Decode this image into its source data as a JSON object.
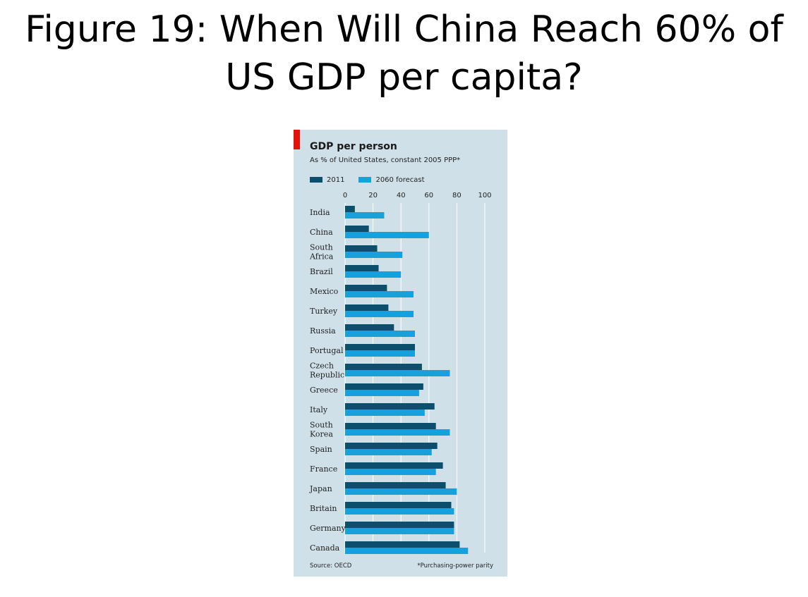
{
  "slide": {
    "title": "Figure 19: When Will China Reach 60% of US GDP per capita?"
  },
  "colors": {
    "panel_bg": "#cfe0e8",
    "accent_red": "#e3120b",
    "series_2011": "#0b4f6c",
    "series_2060": "#16a1dc",
    "gridline": "#ffffff"
  },
  "chart_data": {
    "type": "bar",
    "orientation": "horizontal",
    "title": "GDP per person",
    "subtitle": "As % of United States, constant 2005 PPP*",
    "xlim": [
      0,
      100
    ],
    "xticks": [
      0,
      20,
      40,
      60,
      80,
      100
    ],
    "grid": true,
    "legend_position": "top-left",
    "categories": [
      "India",
      "China",
      "South Africa",
      "Brazil",
      "Mexico",
      "Turkey",
      "Russia",
      "Portugal",
      "Czech Republic",
      "Greece",
      "Italy",
      "South Korea",
      "Spain",
      "France",
      "Japan",
      "Britain",
      "Germany",
      "Canada"
    ],
    "category_lines": [
      [
        "India"
      ],
      [
        "China"
      ],
      [
        "South",
        "Africa"
      ],
      [
        "Brazil"
      ],
      [
        "Mexico"
      ],
      [
        "Turkey"
      ],
      [
        "Russia"
      ],
      [
        "Portugal"
      ],
      [
        "Czech",
        "Republic"
      ],
      [
        "Greece"
      ],
      [
        "Italy"
      ],
      [
        "South",
        "Korea"
      ],
      [
        "Spain"
      ],
      [
        "France"
      ],
      [
        "Japan"
      ],
      [
        "Britain"
      ],
      [
        "Germany"
      ],
      [
        "Canada"
      ]
    ],
    "series": [
      {
        "name": "2011",
        "values": [
          7,
          17,
          23,
          24,
          30,
          31,
          35,
          50,
          55,
          56,
          64,
          65,
          66,
          70,
          72,
          76,
          78,
          82
        ]
      },
      {
        "name": "2060 forecast",
        "values": [
          28,
          60,
          41,
          40,
          49,
          49,
          50,
          50,
          75,
          53,
          57,
          75,
          62,
          65,
          80,
          78,
          78,
          88
        ]
      }
    ],
    "source": "Source: OECD",
    "note": "*Purchasing-power parity"
  }
}
